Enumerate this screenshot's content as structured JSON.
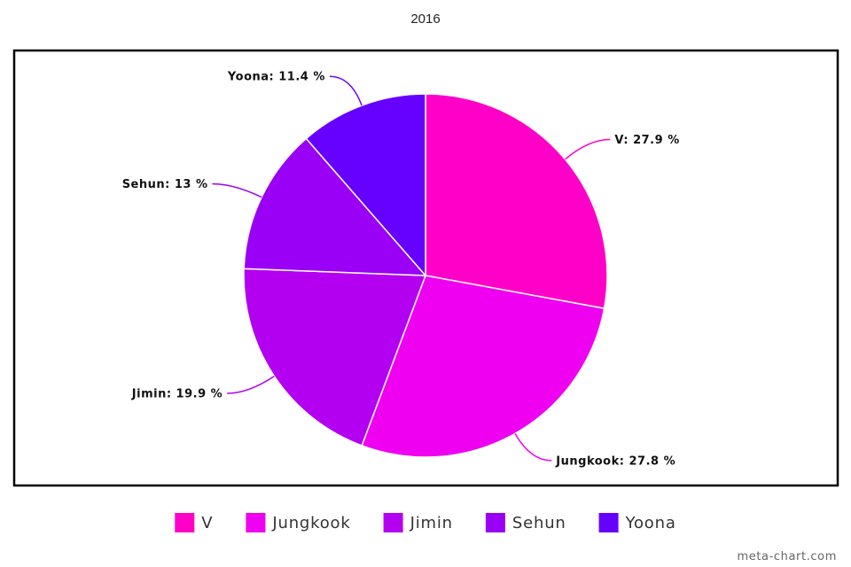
{
  "chart_data": {
    "type": "pie",
    "title": "2016",
    "categories": [
      "V",
      "Jungkook",
      "Jimin",
      "Sehun",
      "Yoona"
    ],
    "values": [
      27.9,
      27.8,
      19.9,
      13,
      11.4
    ],
    "data_labels": [
      "V: 27.9 %",
      "Jungkook: 27.8 %",
      "Jimin: 19.9 %",
      "Sehun: 13 %",
      "Yoona: 11.4 %"
    ],
    "colors": [
      "#ff00c8",
      "#f000f0",
      "#b400f0",
      "#9a00f5",
      "#6600ff"
    ],
    "legend_position": "bottom",
    "start_angle_deg": 0,
    "direction": "clockwise"
  },
  "watermark": "meta-chart.com"
}
